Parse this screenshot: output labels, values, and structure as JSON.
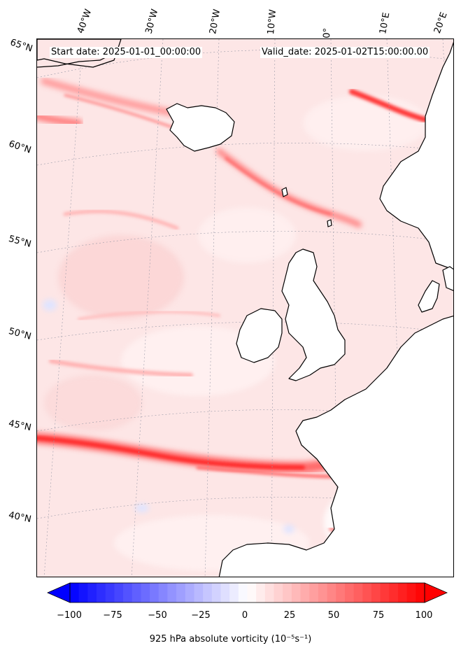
{
  "header": {
    "start_date": "Start date: 2025-01-01_00:00:00",
    "valid_date": "Valid_date: 2025-01-02T15:00:00.00"
  },
  "longitude_labels": [
    "40°W",
    "30°W",
    "20°W",
    "10°W",
    "0°",
    "10°E",
    "20°E"
  ],
  "latitude_labels": [
    "65°N",
    "60°N",
    "55°N",
    "50°N",
    "45°N",
    "40°N"
  ],
  "colorbar": {
    "ticks": [
      "−100",
      "−75",
      "−50",
      "−25",
      "0",
      "25",
      "50",
      "75",
      "100"
    ],
    "title": "925 hPa absolute vorticity (10⁻⁵s⁻¹)",
    "vmin": -100,
    "vmax": 100,
    "levels": 40,
    "colormap": "bwr",
    "extend": "both"
  },
  "map": {
    "field": "925 hPa absolute vorticity",
    "projection": "conic (North Atlantic / Europe)",
    "coastlines": true,
    "gridlines": "dotted grey",
    "colors": {
      "background": "#fde6e6",
      "strong": "#ff2020",
      "medium": "#ff8a8a",
      "weak": "#ffc8c8",
      "land_low": "#ffffff",
      "negative": "#dfe4ff"
    }
  }
}
